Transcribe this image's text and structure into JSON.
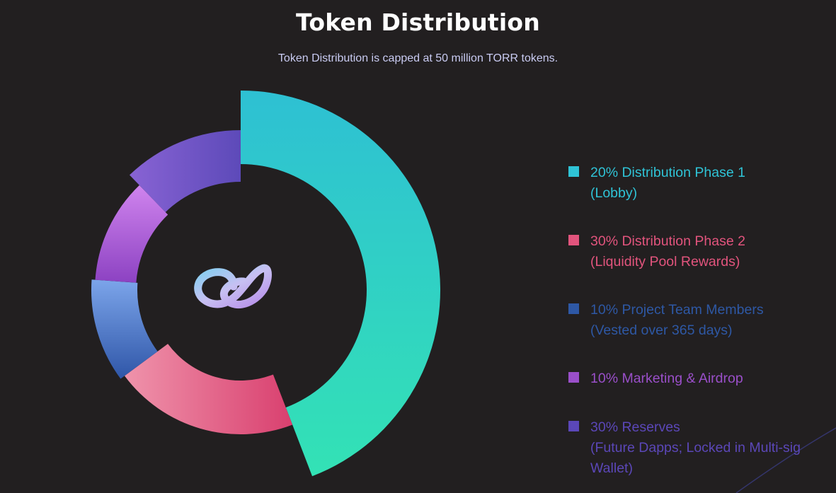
{
  "title": "Token Distribution",
  "subtitle": "Token Distribution is capped at 50 million TORR tokens.",
  "chart_data": {
    "type": "pie",
    "variant": "donut",
    "unit": "%",
    "categories": [
      "Distribution Phase 1",
      "Distribution Phase 2",
      "Project Team Members",
      "Marketing & Airdrop",
      "Reserves"
    ],
    "values": [
      20,
      30,
      10,
      10,
      30
    ],
    "legend_position": "right",
    "center_icon": "infinity-logo-icon"
  },
  "legend": [
    {
      "text": "20% Distribution Phase 1\n(Lobby)",
      "color": "#2fc3d6"
    },
    {
      "text": "30% Distribution Phase 2\n(Liquidity Pool Rewards)",
      "color": "#e2547d"
    },
    {
      "text": "10% Project Team Members\n(Vested over 365 days)",
      "color": "#2e58a5"
    },
    {
      "text": "10% Marketing & Airdrop",
      "color": "#9a4fc9"
    },
    {
      "text": "30% Reserves\n(Future Dapps; Locked in Multi-sig\nWallet)",
      "color": "#5b47b8"
    }
  ]
}
